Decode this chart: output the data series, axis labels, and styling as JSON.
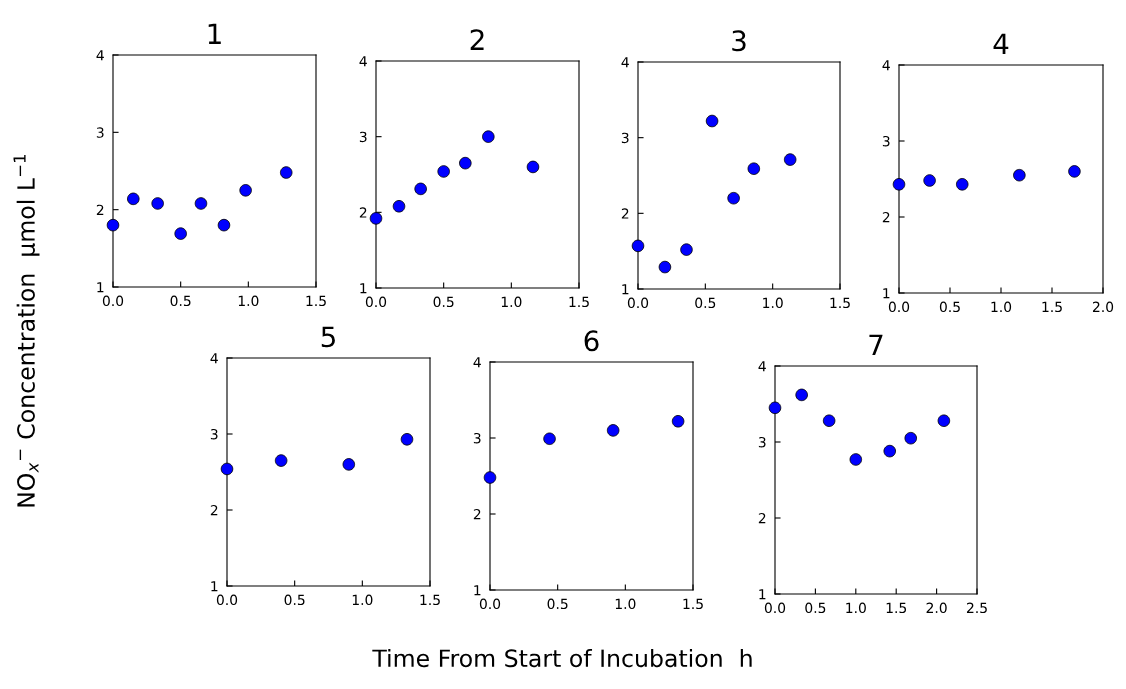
{
  "chart_data": [
    {
      "type": "scatter",
      "title": "1",
      "xlabel": "Time From Start of Incubation  h",
      "ylabel": "NO$_{x}$$^{−}$ Concentration  μmol L$^{−1}$",
      "x": [
        0,
        0.15,
        0.33,
        0.5,
        0.65,
        0.82,
        0.98,
        1.28
      ],
      "series": [
        {
          "color": "#0000ff",
          "values": [
            1.8,
            2.14,
            2.08,
            1.69,
            2.08,
            1.8,
            2.25,
            2.48
          ]
        }
      ],
      "marker": "circle",
      "xlim": [
        0,
        1.5
      ],
      "xticks": [
        {
          "value": 0,
          "label": "0.0"
        },
        {
          "value": 0.5,
          "label": "0.5"
        },
        {
          "value": 1,
          "label": "1.0"
        },
        {
          "value": 1.5,
          "label": "1.5"
        }
      ],
      "ylim": [
        1,
        4
      ],
      "yticks": [
        1,
        2,
        3,
        4
      ]
    },
    {
      "type": "scatter",
      "title": "2",
      "x": [
        0,
        0.17,
        0.33,
        0.5,
        0.66,
        0.83,
        1.16
      ],
      "series": [
        {
          "color": "#0000ff",
          "values": [
            1.92,
            2.08,
            2.31,
            2.54,
            2.65,
            3.0,
            2.6
          ]
        }
      ],
      "marker": "circle",
      "xlim": [
        0,
        1.5
      ],
      "xticks": [
        {
          "value": 0,
          "label": "0.0"
        },
        {
          "value": 0.5,
          "label": "0.5"
        },
        {
          "value": 1,
          "label": "1.0"
        },
        {
          "value": 1.5,
          "label": "1.5"
        }
      ],
      "ylim": [
        1,
        4
      ],
      "yticks": [
        1,
        2,
        3,
        4
      ]
    },
    {
      "type": "scatter",
      "title": "3",
      "x": [
        0,
        0.2,
        0.36,
        0.55,
        0.71,
        0.86,
        1.13
      ],
      "series": [
        {
          "color": "#0000ff",
          "values": [
            1.57,
            1.29,
            1.52,
            3.22,
            2.2,
            2.59,
            2.71
          ]
        }
      ],
      "marker": "circle",
      "xlim": [
        0,
        1.5
      ],
      "xticks": [
        {
          "value": 0,
          "label": "0.0"
        },
        {
          "value": 0.5,
          "label": "0.5"
        },
        {
          "value": 1,
          "label": "1.0"
        },
        {
          "value": 1.5,
          "label": "1.5"
        }
      ],
      "ylim": [
        1,
        4
      ],
      "yticks": [
        1,
        2,
        3,
        4
      ]
    },
    {
      "type": "scatter",
      "title": "4",
      "x": [
        0,
        0.3,
        0.62,
        1.18,
        1.72
      ],
      "series": [
        {
          "color": "#0000ff",
          "values": [
            2.43,
            2.48,
            2.43,
            2.55,
            2.6
          ]
        }
      ],
      "marker": "circle",
      "xlim": [
        0,
        2
      ],
      "xticks": [
        {
          "value": 0,
          "label": "0.0"
        },
        {
          "value": 0.5,
          "label": "0.5"
        },
        {
          "value": 1,
          "label": "1.0"
        },
        {
          "value": 1.5,
          "label": "1.5"
        },
        {
          "value": 2,
          "label": "2.0"
        }
      ],
      "ylim": [
        1,
        4
      ],
      "yticks": [
        1,
        2,
        3,
        4
      ]
    },
    {
      "type": "scatter",
      "title": "5",
      "x": [
        0,
        0.4,
        0.9,
        1.33
      ],
      "series": [
        {
          "color": "#0000ff",
          "values": [
            2.54,
            2.65,
            2.6,
            2.93
          ]
        }
      ],
      "marker": "circle",
      "xlim": [
        0,
        1.5
      ],
      "xticks": [
        {
          "value": 0,
          "label": "0.0"
        },
        {
          "value": 0.5,
          "label": "0.5"
        },
        {
          "value": 1,
          "label": "1.0"
        },
        {
          "value": 1.5,
          "label": "1.5"
        }
      ],
      "ylim": [
        1,
        4
      ],
      "yticks": [
        1,
        2,
        3,
        4
      ]
    },
    {
      "type": "scatter",
      "title": "6",
      "x": [
        0,
        0.44,
        0.91,
        1.39
      ],
      "series": [
        {
          "color": "#0000ff",
          "values": [
            2.48,
            2.99,
            3.1,
            3.22
          ]
        }
      ],
      "marker": "circle",
      "xlim": [
        0,
        1.5
      ],
      "xticks": [
        {
          "value": 0,
          "label": "0.0"
        },
        {
          "value": 0.5,
          "label": "0.5"
        },
        {
          "value": 1,
          "label": "1.0"
        },
        {
          "value": 1.5,
          "label": "1.5"
        }
      ],
      "ylim": [
        1,
        4
      ],
      "yticks": [
        1,
        2,
        3,
        4
      ]
    },
    {
      "type": "scatter",
      "title": "7",
      "x": [
        0,
        0.33,
        0.67,
        1.0,
        1.42,
        1.68,
        2.09
      ],
      "series": [
        {
          "color": "#0000ff",
          "values": [
            3.45,
            3.62,
            3.28,
            2.77,
            2.88,
            3.05,
            3.28
          ]
        }
      ],
      "marker": "circle",
      "xlim": [
        0,
        2.5
      ],
      "xticks": [
        {
          "value": 0,
          "label": "0.0"
        },
        {
          "value": 0.5,
          "label": "0.5"
        },
        {
          "value": 1,
          "label": "1.0"
        },
        {
          "value": 1.5,
          "label": "1.5"
        },
        {
          "value": 2,
          "label": "2.0"
        },
        {
          "value": 2.5,
          "label": "2.5"
        }
      ],
      "ylim": [
        1,
        4
      ],
      "yticks": [
        1,
        2,
        3,
        4
      ]
    }
  ]
}
